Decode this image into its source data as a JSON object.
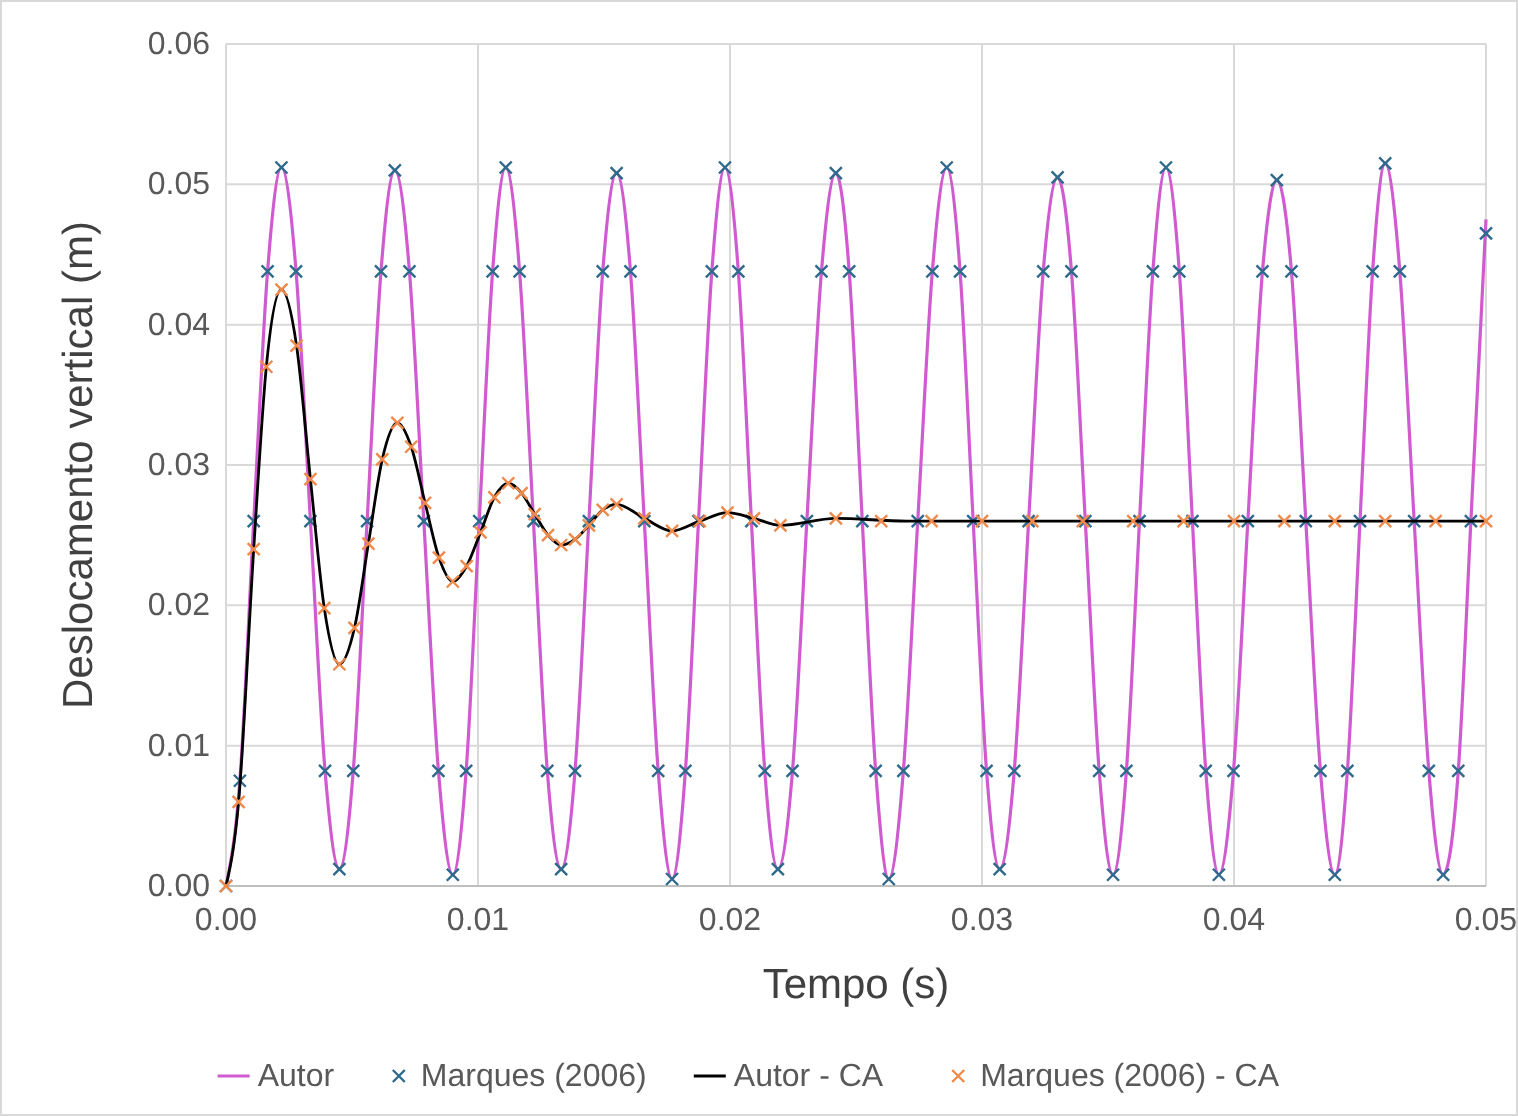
{
  "chart_data": {
    "type": "line",
    "xlabel": "Tempo (s)",
    "ylabel": "Deslocamento vertical (m)",
    "xlim": [
      0,
      0.05
    ],
    "ylim": [
      0,
      0.06
    ],
    "xticks": [
      {
        "value": 0,
        "label": "0.00"
      },
      {
        "value": 0.01,
        "label": "0.01"
      },
      {
        "value": 0.02,
        "label": "0.02"
      },
      {
        "value": 0.03,
        "label": "0.03"
      },
      {
        "value": 0.04,
        "label": "0.04"
      },
      {
        "value": 0.05,
        "label": "0.05"
      }
    ],
    "yticks": [
      {
        "value": 0,
        "label": "0.00"
      },
      {
        "value": 0.01,
        "label": "0.01"
      },
      {
        "value": 0.02,
        "label": "0.02"
      },
      {
        "value": 0.03,
        "label": "0.03"
      },
      {
        "value": 0.04,
        "label": "0.04"
      },
      {
        "value": 0.05,
        "label": "0.05"
      },
      {
        "value": 0.06,
        "label": "0.06"
      }
    ],
    "grid": true,
    "legend": "bottom",
    "series": [
      {
        "name": "Autor",
        "color": "#d05ad0",
        "x": [
          0,
          0.00055,
          0.0011,
          0.00165,
          0.0022,
          0.00278,
          0.00335,
          0.00393,
          0.0045,
          0.00505,
          0.0056,
          0.00615,
          0.0067,
          0.00728,
          0.00785,
          0.00843,
          0.009,
          0.00953,
          0.01005,
          0.01058,
          0.0111,
          0.01165,
          0.0122,
          0.01275,
          0.0133,
          0.01385,
          0.0144,
          0.01495,
          0.0155,
          0.01605,
          0.0166,
          0.01715,
          0.0177,
          0.01823,
          0.01875,
          0.01928,
          0.0198,
          0.02033,
          0.02085,
          0.02138,
          0.0219,
          0.02248,
          0.02305,
          0.02363,
          0.0242,
          0.02473,
          0.02525,
          0.02578,
          0.0263,
          0.02688,
          0.02745,
          0.02803,
          0.0286,
          0.02913,
          0.02965,
          0.03018,
          0.0307,
          0.03128,
          0.03185,
          0.03243,
          0.033,
          0.03355,
          0.0341,
          0.03465,
          0.0352,
          0.03573,
          0.03625,
          0.03678,
          0.0373,
          0.03783,
          0.03835,
          0.03888,
          0.0394,
          0.03998,
          0.04055,
          0.04113,
          0.0417,
          0.04228,
          0.04285,
          0.04343,
          0.044,
          0.0445,
          0.045,
          0.0455,
          0.046,
          0.04658,
          0.04715,
          0.04773,
          0.0483,
          0.0489,
          0.0494,
          0.05
        ],
        "values": [
          0,
          0.0075,
          0.026,
          0.0438,
          0.0512,
          0.0438,
          0.026,
          0.0082,
          0.0012,
          0.0082,
          0.026,
          0.0438,
          0.051,
          0.0438,
          0.026,
          0.0082,
          0.0008,
          0.0082,
          0.026,
          0.0438,
          0.0512,
          0.0438,
          0.026,
          0.0082,
          0.0012,
          0.0082,
          0.026,
          0.0438,
          0.0508,
          0.0438,
          0.026,
          0.0082,
          0.0005,
          0.0082,
          0.026,
          0.0438,
          0.0512,
          0.0438,
          0.026,
          0.0082,
          0.0012,
          0.0082,
          0.026,
          0.0438,
          0.0508,
          0.0438,
          0.026,
          0.0082,
          0.0005,
          0.0082,
          0.026,
          0.0438,
          0.0512,
          0.0438,
          0.026,
          0.0082,
          0.0012,
          0.0082,
          0.026,
          0.0438,
          0.0505,
          0.0438,
          0.026,
          0.0082,
          0.0008,
          0.0082,
          0.026,
          0.0438,
          0.0512,
          0.0438,
          0.026,
          0.0082,
          0.0008,
          0.0082,
          0.026,
          0.0438,
          0.0503,
          0.0438,
          0.026,
          0.0082,
          0.0008,
          0.0082,
          0.026,
          0.0438,
          0.0515,
          0.0438,
          0.026,
          0.0082,
          0.0008,
          0.0082,
          0.026,
          0.0475
        ]
      },
      {
        "name": "Marques (2006)",
        "type": "scatter",
        "marker": "cross",
        "color": "#2e6a8c",
        "x": [
          0,
          0.00055,
          0.0011,
          0.00165,
          0.0022,
          0.00278,
          0.00335,
          0.00393,
          0.0045,
          0.00505,
          0.0056,
          0.00615,
          0.0067,
          0.00728,
          0.00785,
          0.00843,
          0.009,
          0.00953,
          0.01005,
          0.01058,
          0.0111,
          0.01165,
          0.0122,
          0.01275,
          0.0133,
          0.01385,
          0.0144,
          0.01495,
          0.0155,
          0.01605,
          0.0166,
          0.01715,
          0.0177,
          0.01823,
          0.01875,
          0.01928,
          0.0198,
          0.02033,
          0.02085,
          0.02138,
          0.0219,
          0.02248,
          0.02305,
          0.02363,
          0.0242,
          0.02473,
          0.02525,
          0.02578,
          0.0263,
          0.02688,
          0.02745,
          0.02803,
          0.0286,
          0.02913,
          0.02965,
          0.03018,
          0.0307,
          0.03128,
          0.03185,
          0.03243,
          0.033,
          0.03355,
          0.0341,
          0.03465,
          0.0352,
          0.03573,
          0.03625,
          0.03678,
          0.0373,
          0.03783,
          0.03835,
          0.03888,
          0.0394,
          0.03998,
          0.04055,
          0.04113,
          0.0417,
          0.04228,
          0.04285,
          0.04343,
          0.044,
          0.0445,
          0.045,
          0.0455,
          0.046,
          0.04658,
          0.04715,
          0.04773,
          0.0483,
          0.0489,
          0.0494,
          0.05
        ],
        "values": [
          0,
          0.0075,
          0.026,
          0.0438,
          0.0512,
          0.0438,
          0.026,
          0.0082,
          0.0012,
          0.0082,
          0.026,
          0.0438,
          0.051,
          0.0438,
          0.026,
          0.0082,
          0.0008,
          0.0082,
          0.026,
          0.0438,
          0.0512,
          0.0438,
          0.026,
          0.0082,
          0.0012,
          0.0082,
          0.026,
          0.0438,
          0.0508,
          0.0438,
          0.026,
          0.0082,
          0.0005,
          0.0082,
          0.026,
          0.0438,
          0.0512,
          0.0438,
          0.026,
          0.0082,
          0.0012,
          0.0082,
          0.026,
          0.0438,
          0.0508,
          0.0438,
          0.026,
          0.0082,
          0.0005,
          0.0082,
          0.026,
          0.0438,
          0.0512,
          0.0438,
          0.026,
          0.0082,
          0.0012,
          0.0082,
          0.026,
          0.0438,
          0.0505,
          0.0438,
          0.026,
          0.0082,
          0.0008,
          0.0082,
          0.026,
          0.0438,
          0.0512,
          0.0438,
          0.026,
          0.0082,
          0.0008,
          0.0082,
          0.026,
          0.0438,
          0.0503,
          0.0438,
          0.026,
          0.0082,
          0.0008,
          0.0082,
          0.026,
          0.0438,
          0.0515,
          0.0438,
          0.026,
          0.0082,
          0.0008,
          0.0082,
          0.026,
          0.0465
        ]
      },
      {
        "name": "Autor - CA",
        "color": "#000000",
        "x": [
          0,
          0.0005,
          0.0011,
          0.0016,
          0.0022,
          0.0028,
          0.00335,
          0.0039,
          0.0045,
          0.0051,
          0.00565,
          0.0062,
          0.0068,
          0.00735,
          0.0079,
          0.00845,
          0.009,
          0.00955,
          0.0101,
          0.01065,
          0.0112,
          0.01173,
          0.01225,
          0.01278,
          0.0133,
          0.01385,
          0.0144,
          0.01495,
          0.0155,
          0.0166,
          0.0177,
          0.0188,
          0.0199,
          0.02095,
          0.022,
          0.0242,
          0.027,
          0.035,
          0.05
        ],
        "values": [
          0,
          0.006,
          0.024,
          0.037,
          0.0425,
          0.0385,
          0.029,
          0.0198,
          0.0158,
          0.0184,
          0.0244,
          0.0304,
          0.033,
          0.0313,
          0.0273,
          0.0234,
          0.0217,
          0.0228,
          0.0252,
          0.0277,
          0.0287,
          0.028,
          0.0265,
          0.025,
          0.0243,
          0.0247,
          0.0257,
          0.0268,
          0.0272,
          0.0262,
          0.0253,
          0.026,
          0.0266,
          0.0262,
          0.0257,
          0.0262,
          0.026,
          0.026,
          0.026
        ]
      },
      {
        "name": "Marques (2006) - CA",
        "type": "scatter",
        "marker": "cross",
        "color": "#f08a4b",
        "x": [
          0,
          0.0005,
          0.0011,
          0.0016,
          0.0022,
          0.0028,
          0.00335,
          0.0039,
          0.0045,
          0.0051,
          0.00565,
          0.0062,
          0.0068,
          0.00735,
          0.0079,
          0.00845,
          0.009,
          0.00955,
          0.0101,
          0.01065,
          0.0112,
          0.01173,
          0.01225,
          0.01278,
          0.0133,
          0.01385,
          0.0144,
          0.01495,
          0.0155,
          0.0166,
          0.0177,
          0.0188,
          0.0199,
          0.02095,
          0.022,
          0.0242,
          0.026,
          0.028,
          0.03,
          0.032,
          0.034,
          0.036,
          0.038,
          0.04,
          0.042,
          0.044,
          0.046,
          0.048,
          0.05
        ],
        "values": [
          0,
          0.006,
          0.024,
          0.037,
          0.0425,
          0.0385,
          0.029,
          0.0198,
          0.0158,
          0.0184,
          0.0244,
          0.0304,
          0.033,
          0.0313,
          0.0273,
          0.0234,
          0.0217,
          0.0228,
          0.0252,
          0.0277,
          0.0287,
          0.028,
          0.0265,
          0.025,
          0.0243,
          0.0247,
          0.0257,
          0.0268,
          0.0272,
          0.0262,
          0.0253,
          0.026,
          0.0266,
          0.0262,
          0.0257,
          0.0262,
          0.026,
          0.026,
          0.026,
          0.026,
          0.026,
          0.026,
          0.026,
          0.026,
          0.026,
          0.026,
          0.026,
          0.026,
          0.026
        ]
      }
    ]
  }
}
